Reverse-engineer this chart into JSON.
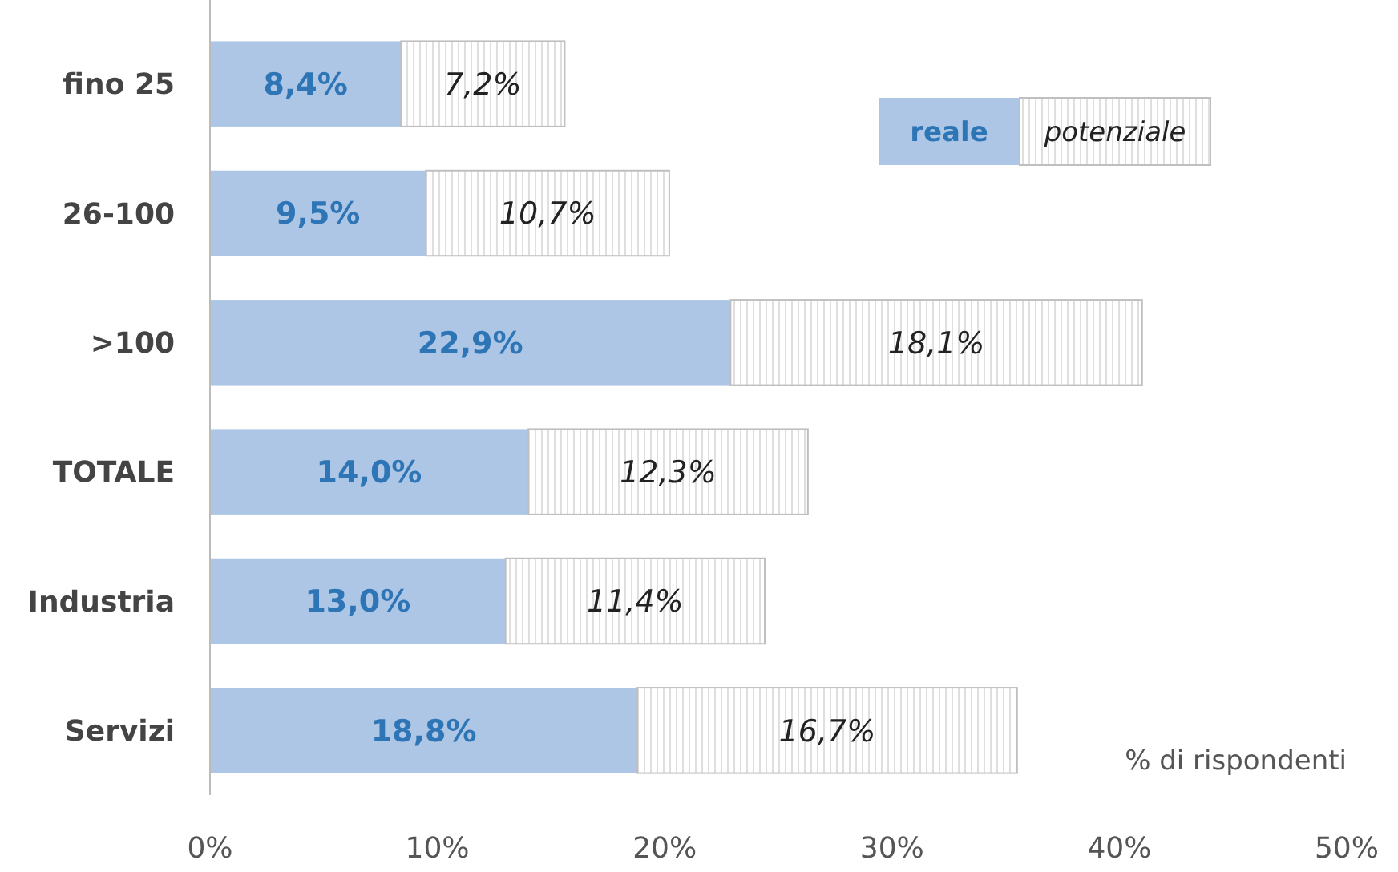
{
  "chart_data": {
    "type": "bar",
    "orientation": "horizontal",
    "stacked": true,
    "categories": [
      "fino 25",
      "26-100",
      ">100",
      "TOTALE",
      "Industria",
      "Servizi"
    ],
    "series": [
      {
        "name": "reale",
        "color": "#adc6e6",
        "values": [
          8.4,
          9.5,
          22.9,
          14.0,
          13.0,
          18.8
        ],
        "value_labels": [
          "8,4%",
          "9,5%",
          "22,9%",
          "14,0%",
          "13,0%",
          "18,8%"
        ]
      },
      {
        "name": "potenziale",
        "color": "#bfbfbf",
        "values": [
          7.2,
          10.7,
          18.1,
          12.3,
          11.4,
          16.7
        ],
        "value_labels": [
          "7,2%",
          "10,7%",
          "18,1%",
          "12,3%",
          "11,4%",
          "16,7%"
        ]
      }
    ],
    "xlim": [
      0,
      50
    ],
    "xticks": [
      {
        "value": 0,
        "label": "0%"
      },
      {
        "value": 10,
        "label": "10%"
      },
      {
        "value": 20,
        "label": "20%"
      },
      {
        "value": 30,
        "label": "30%"
      },
      {
        "value": 40,
        "label": "40%"
      },
      {
        "value": 50,
        "label": "50%"
      }
    ],
    "legend": "top right",
    "grid": false,
    "annotations": [
      "% di rispondenti"
    ]
  }
}
